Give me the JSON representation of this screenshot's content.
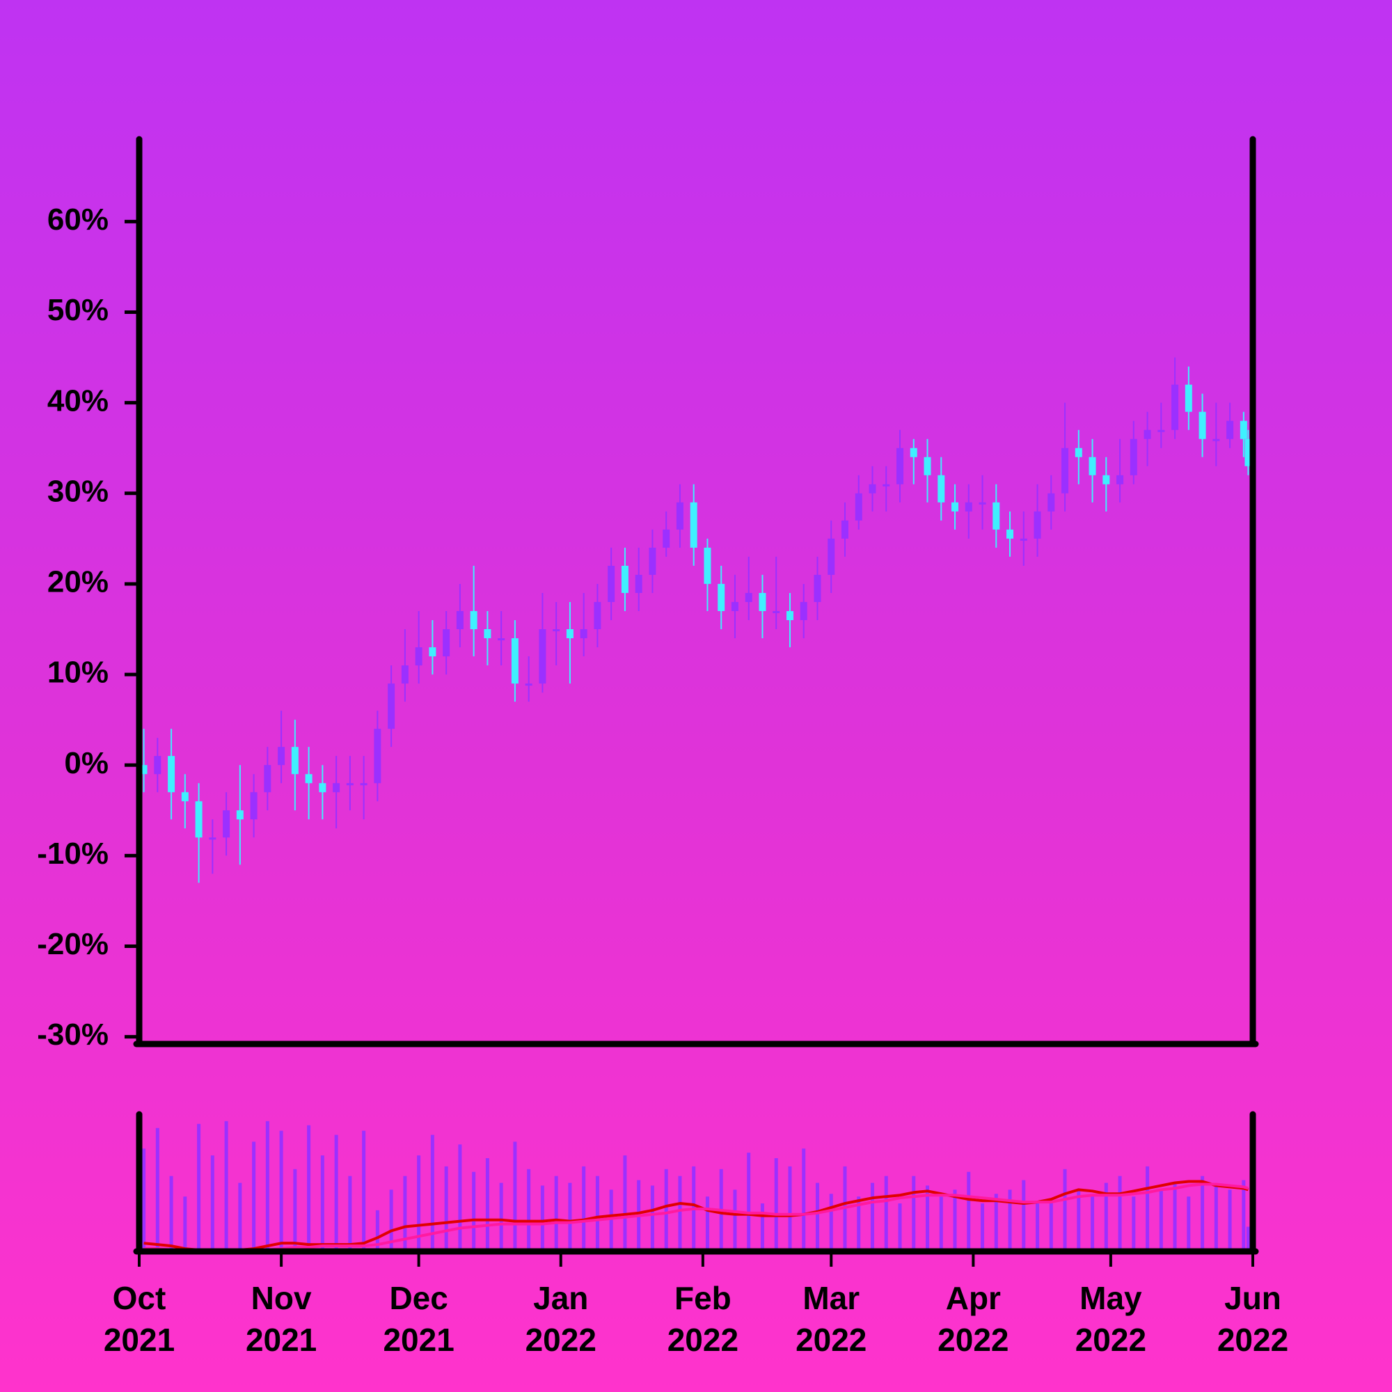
{
  "chart_data": {
    "type": "candlestick",
    "up_color": "#9b30ff",
    "down_color": "#3ff0ff",
    "xlim": [
      0,
      243
    ],
    "ylim": [
      -30.8,
      69.1
    ],
    "yticks": [
      {
        "value": -30,
        "label": "-30%"
      },
      {
        "value": -20,
        "label": "-20%"
      },
      {
        "value": -10,
        "label": "-10%"
      },
      {
        "value": 0,
        "label": "0%"
      },
      {
        "value": 10,
        "label": "10%"
      },
      {
        "value": 20,
        "label": "20%"
      },
      {
        "value": 30,
        "label": "30%"
      },
      {
        "value": 40,
        "label": "40%"
      },
      {
        "value": 50,
        "label": "50%"
      },
      {
        "value": 60,
        "label": "60%"
      }
    ],
    "xticks": [
      {
        "value": 0,
        "label": "Oct 2021"
      },
      {
        "value": 31,
        "label": "Nov 2021"
      },
      {
        "value": 61,
        "label": "Dec 2021"
      },
      {
        "value": 92,
        "label": "Jan 2022"
      },
      {
        "value": 123,
        "label": "Feb 2022"
      },
      {
        "value": 151,
        "label": "Mar 2022"
      },
      {
        "value": 182,
        "label": "Apr 2022"
      },
      {
        "value": 212,
        "label": "May 2022"
      },
      {
        "value": 243,
        "label": "Jun 2022"
      }
    ],
    "x": [
      1,
      4,
      7,
      10,
      13,
      16,
      19,
      22,
      25,
      28,
      31,
      34,
      37,
      40,
      43,
      46,
      49,
      52,
      55,
      58,
      61,
      64,
      67,
      70,
      73,
      76,
      79,
      82,
      85,
      88,
      91,
      94,
      97,
      100,
      103,
      106,
      109,
      112,
      115,
      118,
      121,
      124,
      127,
      130,
      133,
      136,
      139,
      142,
      145,
      148,
      151,
      154,
      157,
      160,
      163,
      166,
      169,
      172,
      175,
      178,
      181,
      184,
      187,
      190,
      193,
      196,
      199,
      202,
      205,
      208,
      211,
      214,
      217,
      220,
      223,
      226,
      229,
      232,
      235,
      238,
      241,
      242
    ],
    "open": [
      0,
      -1,
      1,
      -3,
      -4,
      -8,
      -8,
      -5,
      -6,
      -3,
      0,
      2,
      -1,
      -2,
      -3,
      -2,
      -2,
      -2,
      4,
      9,
      11,
      13,
      12,
      15,
      17,
      15,
      14,
      14,
      9,
      9,
      15,
      15,
      14,
      15,
      18,
      22,
      19,
      21,
      24,
      26,
      29,
      24,
      20,
      17,
      18,
      19,
      17,
      17,
      16,
      18,
      21,
      25,
      27,
      30,
      31,
      31,
      35,
      34,
      32,
      29,
      28,
      29,
      29,
      26,
      25,
      25,
      28,
      30,
      35,
      34,
      32,
      31,
      32,
      36,
      37,
      37,
      42,
      39,
      36,
      36,
      38,
      36
    ],
    "high": [
      4,
      3,
      4,
      -1,
      -2,
      -6,
      -3,
      0,
      -1,
      2,
      6,
      5,
      2,
      0,
      1,
      1,
      1,
      6,
      11,
      15,
      17,
      16,
      17,
      20,
      22,
      17,
      17,
      16,
      12,
      19,
      18,
      18,
      19,
      20,
      24,
      24,
      24,
      26,
      28,
      31,
      31,
      25,
      22,
      21,
      23,
      21,
      23,
      19,
      20,
      23,
      27,
      29,
      32,
      33,
      33,
      37,
      36,
      36,
      34,
      31,
      31,
      32,
      31,
      28,
      28,
      31,
      32,
      40,
      37,
      36,
      34,
      36,
      38,
      39,
      40,
      45,
      44,
      41,
      40,
      40,
      39,
      37
    ],
    "low": [
      -3,
      -3,
      -6,
      -7,
      -13,
      -12,
      -10,
      -11,
      -8,
      -5,
      -2,
      -5,
      -6,
      -6,
      -7,
      -5,
      -6,
      -4,
      2,
      7,
      9,
      10,
      10,
      13,
      12,
      11,
      11,
      7,
      7,
      8,
      11,
      9,
      12,
      13,
      16,
      17,
      17,
      19,
      23,
      24,
      22,
      17,
      15,
      14,
      16,
      14,
      15,
      13,
      14,
      16,
      19,
      23,
      26,
      28,
      28,
      29,
      31,
      29,
      27,
      26,
      25,
      26,
      24,
      23,
      22,
      23,
      26,
      28,
      31,
      29,
      28,
      29,
      31,
      33,
      35,
      36,
      37,
      34,
      33,
      35,
      34,
      32
    ],
    "close": [
      -1,
      1,
      -3,
      -4,
      -8,
      -8,
      -5,
      -6,
      -3,
      0,
      2,
      -1,
      -2,
      -3,
      -2,
      -2,
      -2,
      4,
      9,
      11,
      13,
      12,
      15,
      17,
      15,
      14,
      14,
      9,
      9,
      15,
      15,
      14,
      15,
      18,
      22,
      19,
      21,
      24,
      26,
      29,
      24,
      20,
      17,
      18,
      19,
      17,
      17,
      16,
      18,
      21,
      25,
      27,
      30,
      31,
      31,
      35,
      34,
      32,
      29,
      28,
      29,
      29,
      26,
      25,
      25,
      28,
      30,
      35,
      34,
      32,
      31,
      32,
      36,
      37,
      37,
      42,
      39,
      36,
      36,
      38,
      36,
      33
    ],
    "volume": {
      "color": "#9b30ff",
      "ylim": [
        0,
        100
      ],
      "values": [
        75,
        90,
        55,
        40,
        93,
        70,
        95,
        50,
        80,
        95,
        88,
        60,
        92,
        70,
        85,
        55,
        88,
        30,
        45,
        55,
        70,
        85,
        62,
        78,
        58,
        68,
        50,
        80,
        60,
        48,
        55,
        50,
        62,
        55,
        45,
        70,
        52,
        48,
        60,
        55,
        62,
        40,
        60,
        45,
        72,
        35,
        68,
        62,
        75,
        50,
        42,
        62,
        40,
        50,
        55,
        35,
        55,
        48,
        40,
        45,
        58,
        35,
        42,
        45,
        52,
        35,
        38,
        60,
        45,
        40,
        50,
        55,
        40,
        62,
        45,
        50,
        40,
        55,
        48,
        45,
        52,
        18
      ],
      "series": [
        {
          "color": "#e00000",
          "values": [
            6,
            5,
            4,
            2,
            1,
            0,
            0,
            1,
            2,
            4,
            6,
            6,
            5,
            5,
            5,
            5,
            6,
            10,
            15,
            18,
            19,
            20,
            21,
            22,
            23,
            23,
            23,
            22,
            22,
            22,
            23,
            22,
            23,
            25,
            26,
            27,
            28,
            30,
            33,
            35,
            34,
            30,
            28,
            27,
            27,
            26,
            26,
            26,
            27,
            29,
            32,
            35,
            37,
            39,
            40,
            41,
            43,
            44,
            42,
            40,
            38,
            37,
            37,
            36,
            35,
            36,
            38,
            42,
            45,
            44,
            42,
            42,
            44,
            46,
            48,
            50,
            51,
            51,
            48,
            47,
            46,
            45
          ]
        },
        {
          "color": "#ff1aa0",
          "values": [
            2,
            2,
            1,
            1,
            0,
            0,
            0,
            0,
            0,
            1,
            2,
            3,
            3,
            4,
            4,
            4,
            4,
            5,
            7,
            9,
            11,
            13,
            15,
            17,
            18,
            19,
            20,
            20,
            20,
            20,
            21,
            21,
            22,
            23,
            24,
            25,
            26,
            27,
            28,
            30,
            31,
            31,
            30,
            29,
            28,
            28,
            27,
            27,
            27,
            28,
            30,
            32,
            34,
            36,
            37,
            39,
            40,
            41,
            41,
            41,
            40,
            39,
            38,
            37,
            36,
            36,
            36,
            38,
            40,
            41,
            41,
            41,
            42,
            43,
            45,
            46,
            48,
            49,
            49,
            48,
            47,
            46
          ]
        }
      ]
    }
  }
}
